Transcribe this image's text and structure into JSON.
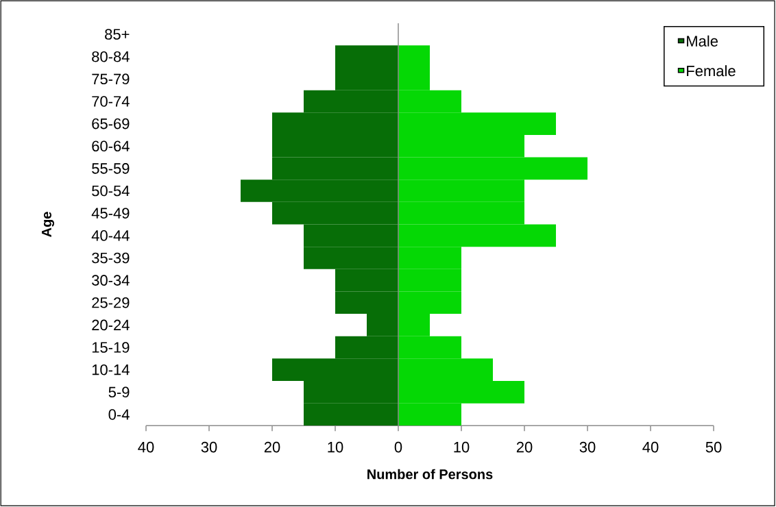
{
  "chart_data": {
    "type": "bar",
    "orientation": "horizontal",
    "stacked": true,
    "categories": [
      "85+",
      "80-84",
      "75-79",
      "70-74",
      "65-69",
      "60-64",
      "55-59",
      "50-54",
      "45-49",
      "40-44",
      "35-39",
      "30-34",
      "25-29",
      "20-24",
      "15-19",
      "10-14",
      "5-9",
      "0-4"
    ],
    "series": [
      {
        "name": "Male",
        "color": "#076e07",
        "values": [
          0,
          -10,
          -10,
          -15,
          -20,
          -20,
          -20,
          -25,
          -20,
          -15,
          -15,
          -10,
          -10,
          -5,
          -10,
          -20,
          -15,
          -15
        ]
      },
      {
        "name": "Female",
        "color": "#05d805",
        "values": [
          0,
          5,
          5,
          10,
          25,
          20,
          30,
          20,
          20,
          25,
          10,
          10,
          10,
          5,
          10,
          15,
          20,
          10
        ]
      }
    ],
    "xlim": [
      -40,
      50
    ],
    "xticks": [
      {
        "value": -40,
        "label": "40"
      },
      {
        "value": -30,
        "label": "30"
      },
      {
        "value": -20,
        "label": "20"
      },
      {
        "value": -10,
        "label": "10"
      },
      0,
      10,
      20,
      30,
      40,
      50
    ],
    "xlabel": "Number of Persons",
    "ylabel": "Age",
    "legend": "top right"
  }
}
